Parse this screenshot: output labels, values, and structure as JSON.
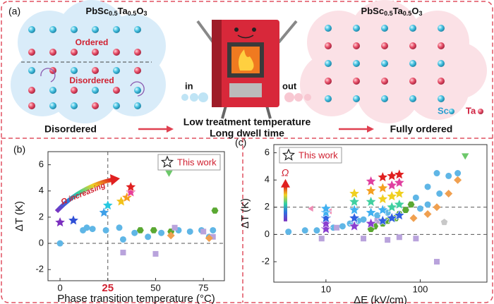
{
  "panel_a": {
    "label": "(a)",
    "formula_left": [
      "PbSc",
      "0.5",
      "Ta",
      "0.5",
      "O",
      "3"
    ],
    "formula_right": [
      "PbSc",
      "0.5",
      "Ta",
      "0.5",
      "O",
      "3"
    ],
    "ordered": "Ordered",
    "disordered_region": "Disordered",
    "in": "in",
    "out": "out",
    "sc": "Sc",
    "ta": "Ta",
    "start": "Disordered",
    "process": [
      "Low treatment temperature",
      "Long dwell time"
    ],
    "end": "Fully ordered"
  },
  "chart_data": [
    {
      "type": "scatter",
      "label": "(b)",
      "xlabel": "Phase transition temperature (°C)",
      "ylabel": "ΔT (K)",
      "annotation": "Ω increasing",
      "legend": "upper right",
      "log_x": false,
      "xlim": [
        -6.3,
        86
      ],
      "ylim": [
        -2.85,
        7
      ],
      "xticks": [
        0,
        25,
        50,
        75
      ],
      "yticks": [
        -2,
        0,
        2,
        4,
        6
      ],
      "vlines": [
        25
      ],
      "hlines": [
        0
      ],
      "series": [
        {
          "marker": "circle",
          "color": "#5fb6e6",
          "x": [
            0,
            14,
            12,
            17,
            24,
            31,
            33,
            39,
            46,
            53,
            62,
            68,
            74,
            80,
            78
          ],
          "values": [
            0,
            1.2,
            1.0,
            1.1,
            1.0,
            1.2,
            0.3,
            0.8,
            0.5,
            0.8,
            1.0,
            0.9,
            1.0,
            1.0,
            0.5
          ]
        },
        {
          "marker": "hexagon",
          "color": "#5aa832",
          "x": [
            42,
            49,
            58,
            81
          ],
          "values": [
            1.0,
            1.0,
            0.9,
            2.5
          ]
        },
        {
          "marker": "square",
          "color": "#b9a3dc",
          "x": [
            33,
            50,
            60,
            75,
            80
          ],
          "values": [
            -0.7,
            -0.8,
            1.2,
            0.9,
            0.5
          ]
        },
        {
          "marker": "diamond",
          "color": "#f0a050",
          "x": [
            58,
            78
          ],
          "values": [
            0.6,
            0.4
          ]
        },
        {
          "marker": "triangle-down",
          "color": "#6cc86a",
          "x": [
            57
          ],
          "values": [
            5.4
          ]
        },
        {
          "name": "This work",
          "marker": "star",
          "x": [
            0,
            7,
            23,
            25,
            32,
            35,
            37,
            37
          ],
          "values": [
            1.6,
            1.75,
            2.35,
            2.9,
            3.2,
            3.5,
            3.9,
            4.3
          ],
          "colors": [
            "#7b2fbf",
            "#2f4fd6",
            "#3fa0e8",
            "#25c7e0",
            "#f2c21a",
            "#f59a1a",
            "#e8409a",
            "#e02020"
          ]
        }
      ]
    },
    {
      "type": "scatter",
      "label": "(c)",
      "xlabel": "ΔE (kV/cm)",
      "ylabel": "ΔT (K)",
      "annotation": "Ω",
      "legend": "upper left",
      "log_x": true,
      "xlim": [
        2.8,
        510
      ],
      "ylim": [
        -3.5,
        6.6
      ],
      "xticks": [
        10,
        100
      ],
      "yticks": [
        -2,
        0,
        2,
        4,
        6
      ],
      "vlines": [],
      "hlines": [
        0,
        2
      ],
      "series": [
        {
          "marker": "circle",
          "color": "#5fb6e6",
          "x": [
            4,
            6,
            8,
            12,
            15,
            18,
            22,
            25,
            35,
            45,
            70,
            90,
            100,
            120,
            150,
            200,
            250,
            120,
            160
          ],
          "values": [
            0.2,
            0.3,
            0.3,
            0.5,
            0.6,
            0.8,
            1.0,
            1.1,
            1.4,
            1.6,
            1.8,
            2.7,
            1.9,
            3.5,
            4.5,
            4.3,
            4.5,
            2.2,
            3.0
          ]
        },
        {
          "marker": "square",
          "color": "#b9a3dc",
          "x": [
            9,
            13,
            25,
            35,
            45,
            60,
            90,
            150
          ],
          "values": [
            -0.3,
            0.5,
            -0.3,
            1.0,
            -0.4,
            -0.2,
            -0.3,
            -2.0
          ]
        },
        {
          "marker": "hexagon",
          "color": "#5aa832",
          "x": [
            30,
            33,
            40,
            45,
            55,
            60,
            70,
            80
          ],
          "values": [
            0.4,
            0.6,
            0.8,
            1.0,
            1.2,
            1.5,
            1.8,
            2.2
          ]
        },
        {
          "marker": "diamond",
          "color": "#f0a050",
          "x": [
            85,
            120,
            150,
            200,
            250
          ],
          "values": [
            1.2,
            1.5,
            2.0,
            3.0,
            4.0
          ]
        },
        {
          "marker": "pentagon",
          "color": "#c8c8c8",
          "x": [
            180
          ],
          "values": [
            0.9
          ]
        },
        {
          "marker": "triangle-down",
          "color": "#6cc86a",
          "x": [
            300
          ],
          "values": [
            5.8
          ]
        },
        {
          "marker": "triangle-left",
          "color": "#f08cb4",
          "x": [
            7,
            11
          ],
          "values": [
            1.9,
            1.7
          ]
        },
        {
          "name": "This work",
          "marker": "star",
          "x": [
            10,
            10,
            10,
            10,
            10,
            20,
            20,
            20,
            20,
            20,
            30,
            30,
            30,
            30,
            30,
            40,
            40,
            40,
            40,
            40,
            50,
            50,
            50,
            50,
            50,
            60,
            60,
            60,
            60,
            60
          ],
          "values": [
            0.4,
            0.8,
            1.2,
            1.6,
            1.9,
            0.6,
            1.2,
            1.8,
            2.4,
            3.0,
            0.8,
            1.6,
            2.4,
            3.2,
            3.9,
            1.0,
            1.8,
            2.6,
            3.4,
            4.2,
            1.2,
            2.0,
            2.8,
            3.6,
            4.3,
            1.4,
            2.2,
            3.0,
            3.8,
            4.4
          ],
          "colors": [
            "#8a3fd0",
            "#8a3fd0",
            "#3060e0",
            "#40b0f0",
            "#40b0f0",
            "#8a3fd0",
            "#3060e0",
            "#40b0f0",
            "#40d0a0",
            "#f0d020",
            "#8a3fd0",
            "#40b0f0",
            "#40d0a0",
            "#f5a020",
            "#e040a0",
            "#3060e0",
            "#40b0f0",
            "#f0d020",
            "#f5a020",
            "#e02020",
            "#3060e0",
            "#40d0a0",
            "#f0d020",
            "#e040a0",
            "#e02020",
            "#3060e0",
            "#40d0a0",
            "#f0d020",
            "#e040a0",
            "#e02020"
          ]
        }
      ]
    }
  ]
}
